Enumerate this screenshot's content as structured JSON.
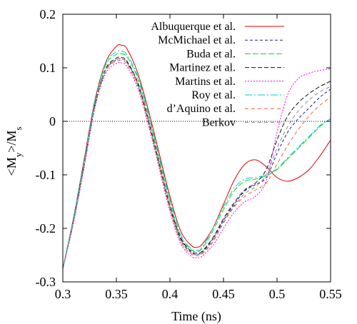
{
  "chart_data": {
    "type": "line",
    "xlabel": "Time (ns)",
    "ylabel": "<M_y>/M_s",
    "xlim": [
      0.3,
      0.55
    ],
    "ylim": [
      -0.3,
      0.2
    ],
    "x_ticks": [
      "0.3",
      "0.35",
      "0.4",
      "0.45",
      "0.5",
      "0.55"
    ],
    "y_ticks": [
      "-0.3",
      "-0.2",
      "-0.1",
      "0",
      "0.1",
      "0.2"
    ],
    "zero_line": true,
    "legend_position": "top-right",
    "series": [
      {
        "name": "Albuquerque et al.",
        "color": "#dd0000",
        "dash": "solid",
        "x": [
          0.3,
          0.31,
          0.32,
          0.33,
          0.34,
          0.35,
          0.355,
          0.36,
          0.37,
          0.38,
          0.39,
          0.4,
          0.41,
          0.42,
          0.425,
          0.43,
          0.44,
          0.45,
          0.46,
          0.47,
          0.48,
          0.49,
          0.5,
          0.51,
          0.52,
          0.53,
          0.54,
          0.55
        ],
        "y": [
          -0.275,
          -0.18,
          -0.07,
          0.04,
          0.11,
          0.14,
          0.142,
          0.135,
          0.09,
          0.02,
          -0.06,
          -0.14,
          -0.205,
          -0.232,
          -0.235,
          -0.23,
          -0.2,
          -0.155,
          -0.11,
          -0.08,
          -0.072,
          -0.085,
          -0.105,
          -0.112,
          -0.105,
          -0.09,
          -0.065,
          -0.035
        ]
      },
      {
        "name": "McMichael et al.",
        "color": "#1a1a99",
        "dash": "4,3",
        "x": [
          0.3,
          0.31,
          0.32,
          0.33,
          0.34,
          0.35,
          0.355,
          0.36,
          0.37,
          0.38,
          0.39,
          0.4,
          0.41,
          0.42,
          0.425,
          0.43,
          0.44,
          0.45,
          0.46,
          0.47,
          0.48,
          0.49,
          0.5,
          0.51,
          0.52,
          0.53,
          0.54,
          0.55
        ],
        "y": [
          -0.275,
          -0.185,
          -0.08,
          0.03,
          0.095,
          0.115,
          0.116,
          0.11,
          0.07,
          0.0,
          -0.08,
          -0.16,
          -0.22,
          -0.245,
          -0.248,
          -0.245,
          -0.22,
          -0.185,
          -0.155,
          -0.13,
          -0.118,
          -0.105,
          -0.06,
          -0.02,
          0.005,
          0.025,
          0.045,
          0.06
        ]
      },
      {
        "name": "Buda et al.",
        "color": "#22cc22",
        "dash": "8,3",
        "x": [
          0.3,
          0.31,
          0.32,
          0.33,
          0.34,
          0.35,
          0.355,
          0.36,
          0.37,
          0.38,
          0.39,
          0.4,
          0.41,
          0.42,
          0.425,
          0.43,
          0.44,
          0.45,
          0.46,
          0.47,
          0.48,
          0.49,
          0.5,
          0.51,
          0.52,
          0.53,
          0.54,
          0.55
        ],
        "y": [
          -0.275,
          -0.182,
          -0.075,
          0.035,
          0.105,
          0.125,
          0.126,
          0.12,
          0.08,
          0.01,
          -0.07,
          -0.15,
          -0.215,
          -0.24,
          -0.243,
          -0.238,
          -0.205,
          -0.165,
          -0.13,
          -0.112,
          -0.108,
          -0.102,
          -0.09,
          -0.07,
          -0.05,
          -0.03,
          -0.01,
          0.005
        ]
      },
      {
        "name": "Martinez et al.",
        "color": "#111111",
        "dash": "6,3",
        "x": [
          0.3,
          0.31,
          0.32,
          0.33,
          0.34,
          0.35,
          0.355,
          0.36,
          0.37,
          0.38,
          0.39,
          0.4,
          0.41,
          0.42,
          0.425,
          0.43,
          0.44,
          0.45,
          0.46,
          0.47,
          0.48,
          0.49,
          0.5,
          0.51,
          0.52,
          0.53,
          0.54,
          0.55
        ],
        "y": [
          -0.275,
          -0.185,
          -0.08,
          0.03,
          0.098,
          0.118,
          0.119,
          0.112,
          0.072,
          0.002,
          -0.078,
          -0.158,
          -0.218,
          -0.243,
          -0.246,
          -0.243,
          -0.218,
          -0.182,
          -0.152,
          -0.128,
          -0.115,
          -0.09,
          -0.035,
          0.01,
          0.035,
          0.052,
          0.065,
          0.075
        ]
      },
      {
        "name": "Martins et al.",
        "color": "#ee00ee",
        "dash": "2,2",
        "x": [
          0.3,
          0.31,
          0.32,
          0.33,
          0.34,
          0.35,
          0.355,
          0.36,
          0.37,
          0.38,
          0.39,
          0.4,
          0.41,
          0.42,
          0.425,
          0.43,
          0.44,
          0.45,
          0.46,
          0.47,
          0.48,
          0.49,
          0.5,
          0.51,
          0.52,
          0.53,
          0.54,
          0.55
        ],
        "y": [
          -0.275,
          -0.19,
          -0.085,
          0.025,
          0.09,
          0.108,
          0.109,
          0.102,
          0.062,
          -0.008,
          -0.088,
          -0.168,
          -0.228,
          -0.252,
          -0.255,
          -0.252,
          -0.232,
          -0.2,
          -0.17,
          -0.15,
          -0.14,
          -0.11,
          -0.02,
          0.05,
          0.08,
          0.09,
          0.095,
          0.098
        ]
      },
      {
        "name": "Roy et al.",
        "color": "#00cccc",
        "dash": "10,3,2,3",
        "x": [
          0.3,
          0.31,
          0.32,
          0.33,
          0.34,
          0.35,
          0.355,
          0.36,
          0.37,
          0.38,
          0.39,
          0.4,
          0.41,
          0.42,
          0.425,
          0.43,
          0.44,
          0.45,
          0.46,
          0.47,
          0.48,
          0.49,
          0.5,
          0.51,
          0.52,
          0.53,
          0.54,
          0.55
        ],
        "y": [
          -0.275,
          -0.18,
          -0.073,
          0.037,
          0.108,
          0.13,
          0.131,
          0.124,
          0.084,
          0.014,
          -0.066,
          -0.146,
          -0.212,
          -0.238,
          -0.241,
          -0.236,
          -0.2,
          -0.16,
          -0.125,
          -0.108,
          -0.105,
          -0.1,
          -0.088,
          -0.068,
          -0.048,
          -0.028,
          -0.008,
          0.005
        ]
      },
      {
        "name": "d’Aquino et al.",
        "color": "#f06030",
        "dash": "5,4",
        "x": [
          0.3,
          0.31,
          0.32,
          0.33,
          0.34,
          0.35,
          0.355,
          0.36,
          0.37,
          0.38,
          0.39,
          0.4,
          0.41,
          0.42,
          0.425,
          0.43,
          0.44,
          0.45,
          0.46,
          0.47,
          0.48,
          0.49,
          0.5,
          0.51,
          0.52,
          0.53,
          0.54,
          0.55
        ],
        "y": [
          -0.275,
          -0.187,
          -0.082,
          0.028,
          0.094,
          0.112,
          0.113,
          0.106,
          0.066,
          -0.004,
          -0.084,
          -0.164,
          -0.225,
          -0.248,
          -0.251,
          -0.248,
          -0.226,
          -0.19,
          -0.16,
          -0.14,
          -0.128,
          -0.115,
          -0.08,
          -0.045,
          -0.015,
          0.01,
          0.03,
          0.045
        ]
      },
      {
        "name": "Berkov",
        "color": "#888888",
        "dash": "5,4",
        "x": [
          0.3,
          0.31,
          0.32,
          0.33,
          0.34,
          0.35,
          0.355,
          0.36,
          0.37,
          0.38,
          0.39,
          0.4,
          0.41,
          0.42,
          0.425,
          0.43,
          0.44,
          0.45,
          0.46,
          0.47,
          0.48,
          0.49,
          0.5,
          0.51,
          0.52,
          0.53,
          0.54,
          0.55
        ],
        "y": [
          -0.275,
          -0.186,
          -0.081,
          0.029,
          0.096,
          0.115,
          0.116,
          0.109,
          0.069,
          -0.001,
          -0.081,
          -0.161,
          -0.222,
          -0.246,
          -0.249,
          -0.246,
          -0.223,
          -0.188,
          -0.158,
          -0.135,
          -0.122,
          -0.1,
          -0.05,
          -0.01,
          0.02,
          0.04,
          0.055,
          0.065
        ]
      }
    ]
  }
}
